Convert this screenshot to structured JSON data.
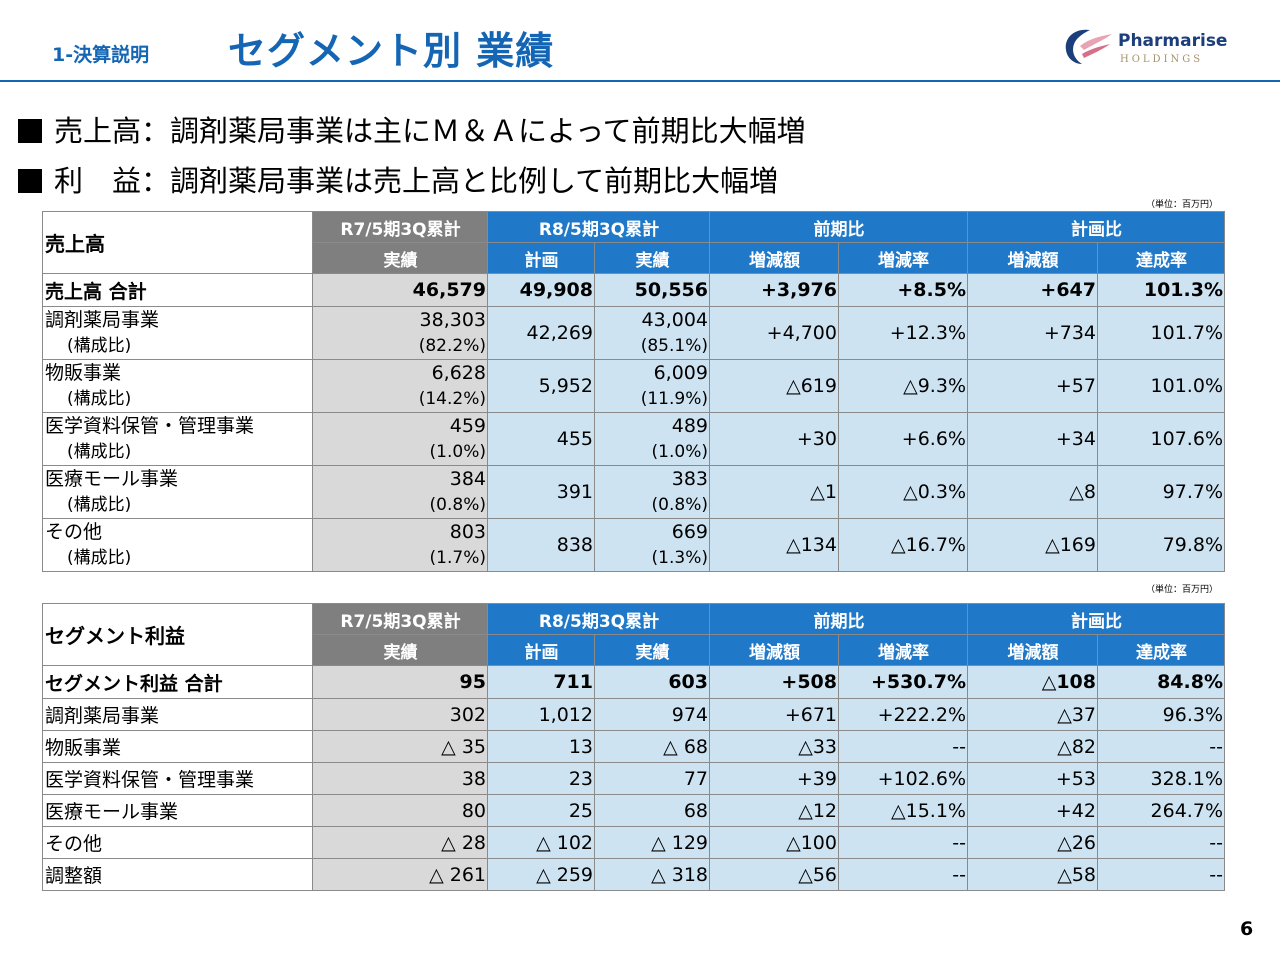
{
  "header": {
    "section_label": "1-決算説明",
    "title": "セグメント別 業績",
    "logo_name": "Pharmarise",
    "logo_sub": "HOLDINGS",
    "colors": {
      "accent": "#1466b5",
      "header_blue": "#1f78c8",
      "header_gray": "#7f7f7f",
      "cell_blue": "#cde3f1",
      "cell_gray": "#d9d9d9"
    }
  },
  "bullets": [
    "売上高：調剤薬局事業は主にＭ＆Ａによって前期比大幅増",
    "利　益：調剤薬局事業は売上高と比例して前期比大幅増"
  ],
  "unit_label": "（単位：百万円）",
  "headers": {
    "prev_period": "R7/5期3Q累計",
    "curr_period": "R8/5期3Q累計",
    "yoy": "前期比",
    "vs_plan": "計画比",
    "actual": "実績",
    "plan": "計画",
    "change_amount": "増減額",
    "change_rate": "増減率",
    "achievement": "達成率"
  },
  "sales_table": {
    "title": "売上高",
    "total": {
      "label": "売上高 合計",
      "prev": "46,579",
      "plan": "49,908",
      "actual": "50,556",
      "yoy_amt": "+3,976",
      "yoy_rate": "+8.5%",
      "plan_amt": "+647",
      "achieve": "101.3%"
    },
    "rows": [
      {
        "label": "調剤薬局事業",
        "sublabel": "(構成比)",
        "prev": "38,303",
        "prev_ratio": "(82.2%)",
        "plan": "42,269",
        "actual": "43,004",
        "actual_ratio": "(85.1%)",
        "yoy_amt": "+4,700",
        "yoy_rate": "+12.3%",
        "plan_amt": "+734",
        "achieve": "101.7%"
      },
      {
        "label": "物販事業",
        "sublabel": "(構成比)",
        "prev": "6,628",
        "prev_ratio": "(14.2%)",
        "plan": "5,952",
        "actual": "6,009",
        "actual_ratio": "(11.9%)",
        "yoy_amt": "△619",
        "yoy_rate": "△9.3%",
        "plan_amt": "+57",
        "achieve": "101.0%"
      },
      {
        "label": "医学資料保管・管理事業",
        "sublabel": "(構成比)",
        "prev": "459",
        "prev_ratio": "(1.0%)",
        "plan": "455",
        "actual": "489",
        "actual_ratio": "(1.0%)",
        "yoy_amt": "+30",
        "yoy_rate": "+6.6%",
        "plan_amt": "+34",
        "achieve": "107.6%"
      },
      {
        "label": "医療モール事業",
        "sublabel": "(構成比)",
        "prev": "384",
        "prev_ratio": "(0.8%)",
        "plan": "391",
        "actual": "383",
        "actual_ratio": "(0.8%)",
        "yoy_amt": "△1",
        "yoy_rate": "△0.3%",
        "plan_amt": "△8",
        "achieve": "97.7%"
      },
      {
        "label": "その他",
        "sublabel": "(構成比)",
        "prev": "803",
        "prev_ratio": "(1.7%)",
        "plan": "838",
        "actual": "669",
        "actual_ratio": "(1.3%)",
        "yoy_amt": "△134",
        "yoy_rate": "△16.7%",
        "plan_amt": "△169",
        "achieve": "79.8%"
      }
    ]
  },
  "profit_table": {
    "title": "セグメント利益",
    "total": {
      "label": "セグメント利益 合計",
      "prev": "95",
      "plan": "711",
      "actual": "603",
      "yoy_amt": "+508",
      "yoy_rate": "+530.7%",
      "plan_amt": "△108",
      "achieve": "84.8%"
    },
    "rows": [
      {
        "label": "調剤薬局事業",
        "prev": "302",
        "plan": "1,012",
        "actual": "974",
        "yoy_amt": "+671",
        "yoy_rate": "+222.2%",
        "plan_amt": "△37",
        "achieve": "96.3%"
      },
      {
        "label": "物販事業",
        "prev": "△ 35",
        "plan": "13",
        "actual": "△ 68",
        "yoy_amt": "△33",
        "yoy_rate": "--",
        "plan_amt": "△82",
        "achieve": "--"
      },
      {
        "label": "医学資料保管・管理事業",
        "prev": "38",
        "plan": "23",
        "actual": "77",
        "yoy_amt": "+39",
        "yoy_rate": "+102.6%",
        "plan_amt": "+53",
        "achieve": "328.1%"
      },
      {
        "label": "医療モール事業",
        "prev": "80",
        "plan": "25",
        "actual": "68",
        "yoy_amt": "△12",
        "yoy_rate": "△15.1%",
        "plan_amt": "+42",
        "achieve": "264.7%"
      },
      {
        "label": "その他",
        "prev": "△ 28",
        "plan": "△ 102",
        "actual": "△ 129",
        "yoy_amt": "△100",
        "yoy_rate": "--",
        "plan_amt": "△26",
        "achieve": "--"
      },
      {
        "label": "調整額",
        "prev": "△ 261",
        "plan": "△ 259",
        "actual": "△ 318",
        "yoy_amt": "△56",
        "yoy_rate": "--",
        "plan_amt": "△58",
        "achieve": "--"
      }
    ]
  },
  "page_number": "6"
}
